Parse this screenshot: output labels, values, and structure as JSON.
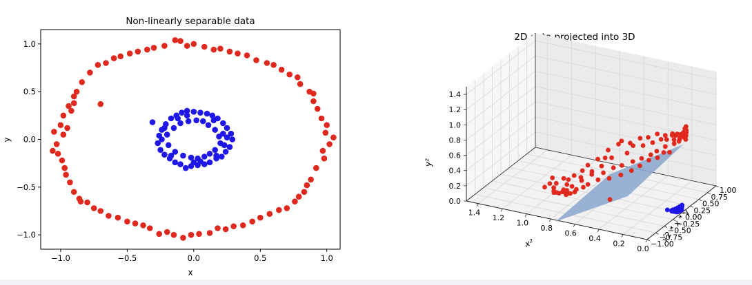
{
  "chart_data": [
    {
      "type": "scatter",
      "title": "Non-linearly separable data",
      "xlabel": "x",
      "ylabel": "y",
      "xlim": [
        -1.15,
        1.1
      ],
      "ylim": [
        -1.15,
        1.15
      ],
      "xticks": [
        -1.0,
        -0.5,
        0.0,
        0.5,
        1.0
      ],
      "xtick_labels": [
        "−1.0",
        "−0.5",
        "0.0",
        "0.5",
        "1.0"
      ],
      "yticks": [
        -1.0,
        -0.5,
        0.0,
        0.5,
        1.0
      ],
      "ytick_labels": [
        "−1.0",
        "−0.5",
        "0.0",
        "0.5",
        "1.0"
      ],
      "grid": false,
      "series": [
        {
          "color": "#e0291e",
          "points": [
            [
              0.99,
              0.07
            ],
            [
              1.02,
              -0.05
            ],
            [
              1.05,
              0.02
            ],
            [
              0.97,
              -0.12
            ],
            [
              1.0,
              0.15
            ],
            [
              0.96,
              0.22
            ],
            [
              0.98,
              -0.2
            ],
            [
              0.93,
              0.32
            ],
            [
              0.92,
              -0.3
            ],
            [
              0.9,
              0.4
            ],
            [
              0.88,
              -0.42
            ],
            [
              0.9,
              0.48
            ],
            [
              0.85,
              -0.48
            ],
            [
              0.87,
              0.5
            ],
            [
              0.83,
              -0.55
            ],
            [
              0.8,
              0.58
            ],
            [
              0.79,
              -0.6
            ],
            [
              0.78,
              0.65
            ],
            [
              0.76,
              -0.65
            ],
            [
              0.72,
              0.68
            ],
            [
              0.7,
              -0.72
            ],
            [
              0.66,
              0.73
            ],
            [
              0.64,
              -0.74
            ],
            [
              0.6,
              0.78
            ],
            [
              0.57,
              -0.78
            ],
            [
              0.55,
              0.8
            ],
            [
              0.5,
              -0.82
            ],
            [
              0.47,
              0.83
            ],
            [
              0.44,
              -0.86
            ],
            [
              0.4,
              0.88
            ],
            [
              0.37,
              -0.9
            ],
            [
              0.33,
              0.9
            ],
            [
              0.3,
              -0.91
            ],
            [
              0.27,
              0.92
            ],
            [
              0.24,
              -0.94
            ],
            [
              0.2,
              0.95
            ],
            [
              0.18,
              -0.93
            ],
            [
              0.15,
              0.94
            ],
            [
              0.12,
              -0.98
            ],
            [
              0.08,
              0.97
            ],
            [
              0.04,
              -0.99
            ],
            [
              0.0,
              1.0
            ],
            [
              -0.02,
              -1.0
            ],
            [
              -0.05,
              0.98
            ],
            [
              -0.08,
              -1.03
            ],
            [
              -0.1,
              1.03
            ],
            [
              -0.15,
              -1.0
            ],
            [
              -0.14,
              1.04
            ],
            [
              -0.2,
              -0.97
            ],
            [
              -0.22,
              0.98
            ],
            [
              -0.26,
              -0.99
            ],
            [
              -0.3,
              0.96
            ],
            [
              -0.33,
              -0.93
            ],
            [
              -0.35,
              0.94
            ],
            [
              -0.38,
              -0.9
            ],
            [
              -0.42,
              0.92
            ],
            [
              -0.44,
              -0.88
            ],
            [
              -0.48,
              0.9
            ],
            [
              -0.5,
              -0.86
            ],
            [
              -0.55,
              0.87
            ],
            [
              -0.57,
              -0.82
            ],
            [
              -0.6,
              0.85
            ],
            [
              -0.64,
              -0.8
            ],
            [
              -0.66,
              0.8
            ],
            [
              -0.7,
              -0.75
            ],
            [
              -0.72,
              0.78
            ],
            [
              -0.75,
              -0.72
            ],
            [
              -0.78,
              0.7
            ],
            [
              -0.8,
              -0.66
            ],
            [
              -0.84,
              0.6
            ],
            [
              -0.86,
              -0.62
            ],
            [
              -0.88,
              0.5
            ],
            [
              -0.9,
              -0.55
            ],
            [
              -0.9,
              0.45
            ],
            [
              -0.93,
              -0.45
            ],
            [
              -0.94,
              0.35
            ],
            [
              -0.96,
              -0.37
            ],
            [
              -0.98,
              0.25
            ],
            [
              -0.97,
              -0.3
            ],
            [
              -1.0,
              0.15
            ],
            [
              -1.02,
              -0.15
            ],
            [
              -1.05,
              0.08
            ],
            [
              -1.03,
              -0.05
            ],
            [
              -1.06,
              -0.12
            ],
            [
              -0.99,
              -0.22
            ],
            [
              -0.95,
              0.12
            ],
            [
              -0.92,
              0.3
            ],
            [
              -0.98,
              0.05
            ],
            [
              -0.7,
              0.37
            ],
            [
              -0.85,
              -0.65
            ],
            [
              -0.9,
              0.38
            ]
          ]
        },
        {
          "color": "#1f17e8",
          "points": [
            [
              0.29,
              0.0
            ],
            [
              0.27,
              -0.08
            ],
            [
              0.28,
              0.06
            ],
            [
              0.25,
              0.12
            ],
            [
              0.24,
              -0.13
            ],
            [
              0.22,
              0.17
            ],
            [
              0.21,
              -0.18
            ],
            [
              0.18,
              0.22
            ],
            [
              0.17,
              -0.2
            ],
            [
              0.14,
              0.25
            ],
            [
              0.12,
              -0.24
            ],
            [
              0.1,
              0.27
            ],
            [
              0.08,
              -0.26
            ],
            [
              0.05,
              0.28
            ],
            [
              0.03,
              -0.27
            ],
            [
              0.0,
              0.29
            ],
            [
              -0.02,
              -0.28
            ],
            [
              -0.05,
              0.3
            ],
            [
              -0.06,
              -0.3
            ],
            [
              -0.09,
              0.28
            ],
            [
              -0.1,
              -0.26
            ],
            [
              -0.13,
              0.25
            ],
            [
              -0.14,
              -0.24
            ],
            [
              -0.17,
              0.22
            ],
            [
              -0.18,
              -0.2
            ],
            [
              -0.21,
              0.16
            ],
            [
              -0.22,
              -0.16
            ],
            [
              -0.24,
              0.1
            ],
            [
              -0.25,
              -0.11
            ],
            [
              -0.26,
              0.04
            ],
            [
              -0.27,
              -0.04
            ],
            [
              -0.24,
              0.0
            ],
            [
              -0.2,
              0.05
            ],
            [
              -0.19,
              -0.06
            ],
            [
              -0.15,
              0.12
            ],
            [
              -0.14,
              -0.13
            ],
            [
              -0.1,
              0.17
            ],
            [
              -0.08,
              -0.17
            ],
            [
              -0.04,
              0.19
            ],
            [
              -0.02,
              -0.19
            ],
            [
              0.02,
              0.2
            ],
            [
              0.03,
              -0.2
            ],
            [
              0.07,
              0.19
            ],
            [
              0.08,
              -0.18
            ],
            [
              0.11,
              0.15
            ],
            [
              0.12,
              -0.15
            ],
            [
              0.16,
              0.1
            ],
            [
              0.16,
              -0.11
            ],
            [
              0.19,
              0.03
            ],
            [
              0.2,
              -0.04
            ],
            [
              0.22,
              0.06
            ],
            [
              0.23,
              -0.06
            ],
            [
              -0.31,
              0.18
            ],
            [
              0.15,
              0.2
            ],
            [
              -0.12,
              0.22
            ],
            [
              0.05,
              -0.23
            ],
            [
              -0.05,
              0.25
            ],
            [
              0.0,
              -0.24
            ],
            [
              -0.17,
              -0.17
            ],
            [
              0.17,
              -0.17
            ],
            [
              -0.22,
              0.12
            ],
            [
              0.25,
              0.02
            ]
          ]
        }
      ]
    },
    {
      "type": "scatter",
      "title": "2D data projected into 3D",
      "xlabel": "x²",
      "ylabel": "√2 * x * y",
      "zlabel": "y²",
      "xlim": [
        0.0,
        1.5
      ],
      "ylim": [
        -1.0,
        1.0
      ],
      "zlim": [
        0.0,
        1.5
      ],
      "xticks": [
        1.4,
        1.2,
        1.0,
        0.8,
        0.6,
        0.4,
        0.2,
        0.0
      ],
      "xtick_labels": [
        "1.4",
        "1.2",
        "1.0",
        "0.8",
        "0.6",
        "0.4",
        "0.2",
        "0.0"
      ],
      "yticks": [
        -1.0,
        -0.75,
        -0.5,
        -0.25,
        0.0,
        0.25,
        0.5,
        0.75,
        1.0
      ],
      "ytick_labels": [
        "−1.00",
        "−0.75",
        "−0.50",
        "−0.25",
        "0.00",
        "0.25",
        "0.50",
        "0.75",
        "1.00"
      ],
      "zticks": [
        0.0,
        0.2,
        0.4,
        0.6,
        0.8,
        1.0,
        1.2,
        1.4
      ],
      "ztick_labels": [
        "0.0",
        "0.2",
        "0.4",
        "0.6",
        "0.8",
        "1.0",
        "1.2",
        "1.4"
      ],
      "grid": true,
      "plane": {
        "color": "#8aa6cc",
        "x": [
          1.4,
          0.0
        ],
        "z_level": 0.0
      },
      "series": [
        {
          "color": "#e0291e",
          "projected_from": 0
        },
        {
          "color": "#1f17e8",
          "projected_from": 1
        }
      ]
    }
  ]
}
